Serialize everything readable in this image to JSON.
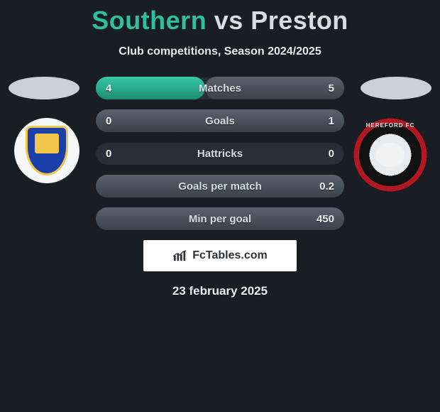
{
  "header": {
    "team_a": "Southern",
    "vs": "vs",
    "team_b": "Preston",
    "subtitle": "Club competitions, Season 2024/2025"
  },
  "colors": {
    "team_a_accent": "#2fbfa0",
    "team_b_accent": "#d9dde2",
    "bar_left_fill": "linear-gradient(#35c9a8, #1e8c70)",
    "bar_right_fill": "linear-gradient(#5a636e, #3a414a)",
    "bar_track": "#2a2f37",
    "background": "#191d24"
  },
  "stats": [
    {
      "label": "Matches",
      "left_val": "4",
      "right_val": "5",
      "left_pct": 44,
      "right_pct": 56
    },
    {
      "label": "Goals",
      "left_val": "0",
      "right_val": "1",
      "left_pct": 0,
      "right_pct": 100
    },
    {
      "label": "Hattricks",
      "left_val": "0",
      "right_val": "0",
      "left_pct": 0,
      "right_pct": 0
    },
    {
      "label": "Goals per match",
      "left_val": "",
      "right_val": "0.2",
      "left_pct": 0,
      "right_pct": 100
    },
    {
      "label": "Min per goal",
      "left_val": "",
      "right_val": "450",
      "left_pct": 0,
      "right_pct": 100
    }
  ],
  "brand": {
    "text": "FcTables.com"
  },
  "footer": {
    "date": "23 february 2025"
  },
  "crest_right_ring": "HEREFORD FC"
}
